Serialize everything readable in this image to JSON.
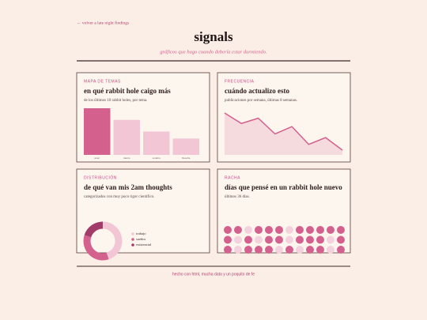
{
  "nav": {
    "back": "← volver a late night findings"
  },
  "header": {
    "title": "signals",
    "subtitle": "gráficos que hago cuando debería estar durmiendo."
  },
  "chart_data": [
    {
      "type": "bar",
      "kicker": "MAPA DE TEMAS",
      "title": "en qué rabbit hole caigo más",
      "subtitle": "de los últimos 10 rabbit holes, por tema.",
      "categories": [
        "amor",
        "danza",
        "cerebro",
        "filosofía"
      ],
      "values": [
        4,
        3,
        2,
        1.4
      ],
      "colors": [
        "#d4608e",
        "#f3c6d6",
        "#f3c6d6",
        "#f3c6d6"
      ]
    },
    {
      "type": "area",
      "kicker": "FRECUENCIA",
      "title": "cuándo actualizo esto",
      "subtitle": "publicaciones por semana, últimas 8 semanas.",
      "values": [
        8,
        6,
        7,
        4,
        5.4,
        2,
        3.3,
        0.9
      ],
      "color": "#d4608e"
    },
    {
      "type": "donut",
      "kicker": "DISTRIBUCIÓN",
      "title": "de qué van mis 2am thoughts",
      "subtitle": "categorizados con muy poco rigor científico.",
      "categories": [
        "trabajo",
        "sueños",
        "existencial"
      ],
      "values": [
        45,
        35,
        20
      ],
      "colors": [
        "#f3c6d6",
        "#d4608e",
        "#a23a6a"
      ]
    },
    {
      "type": "dots",
      "kicker": "RACHA",
      "title": "días que pensé en un rabbit hole nuevo",
      "subtitle": "últimos 36 días.",
      "values": [
        1,
        1,
        0,
        1,
        1,
        1,
        0,
        1,
        1,
        1,
        1,
        1,
        1,
        0,
        1,
        0,
        1,
        1,
        0,
        1,
        1,
        1,
        0,
        1,
        1,
        0,
        1,
        1,
        1,
        0,
        1,
        0,
        1,
        1,
        0,
        1
      ],
      "colors": [
        "#f3d2de",
        "#d4608e"
      ]
    }
  ],
  "footer": "hecho con html, mucha data y un poquito de fe"
}
